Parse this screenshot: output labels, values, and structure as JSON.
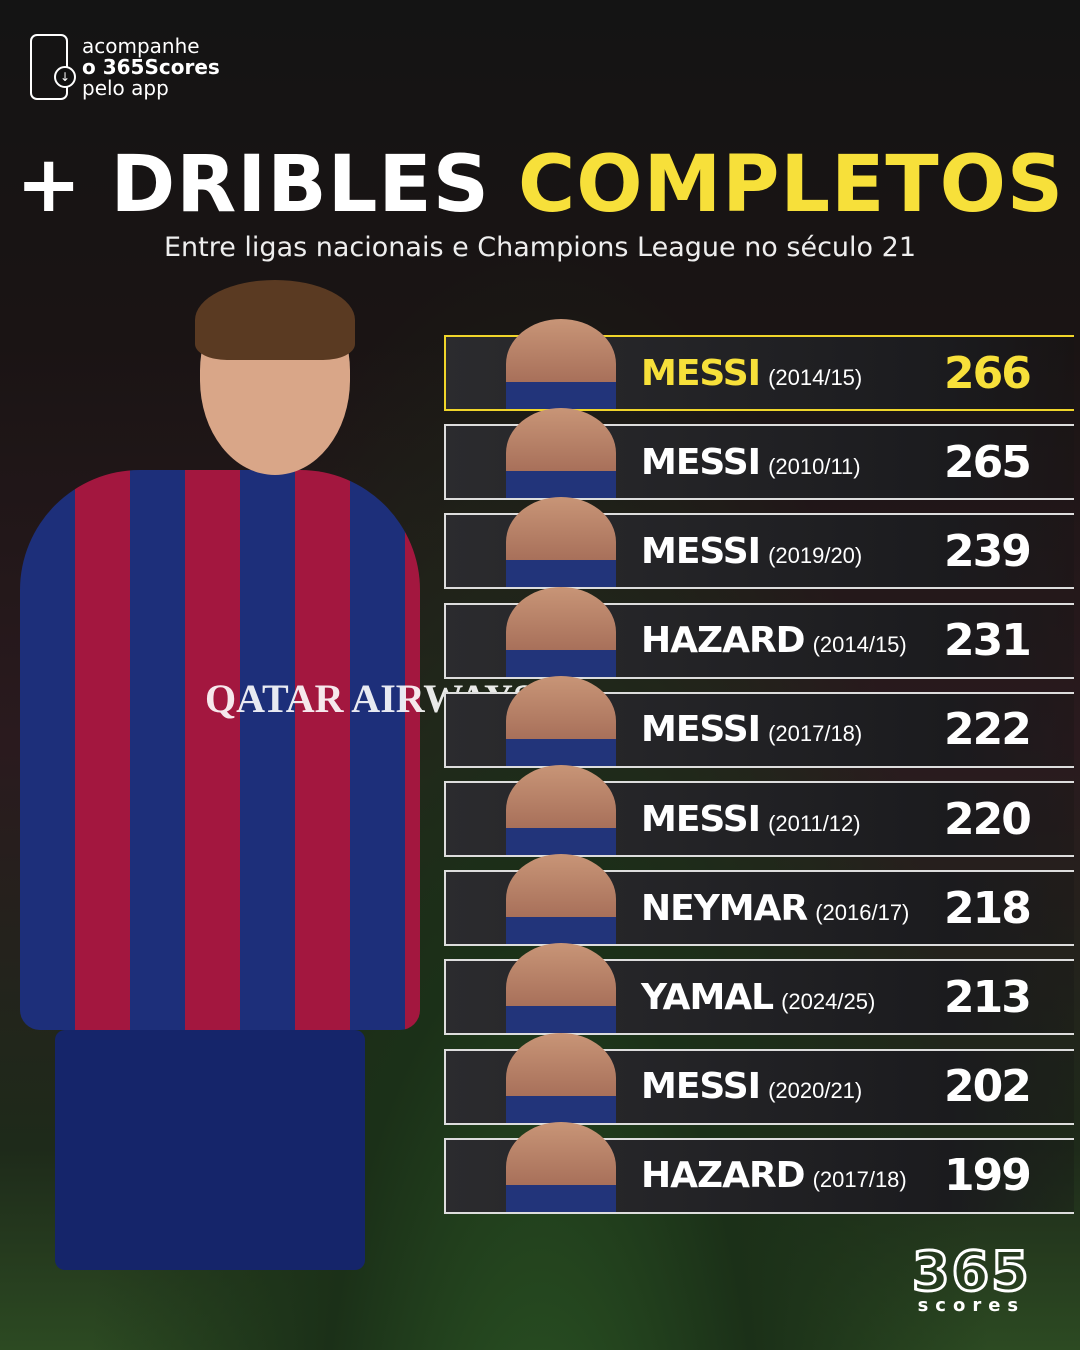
{
  "promo": {
    "line1": "acompanhe",
    "line2": "o 365Scores",
    "line3": "pelo app",
    "icon": "phone-download-icon"
  },
  "title": {
    "prefix": "+ DRIBLES",
    "highlight": "COMPLETOS"
  },
  "subtitle": "Entre ligas nacionais e Champions League no século 21",
  "background": {
    "sponsor": "QATAR AIRWAYS"
  },
  "colors": {
    "accent": "#f7e03a"
  },
  "ranking": [
    {
      "name": "MESSI",
      "season": "(2014/15)",
      "value": "266"
    },
    {
      "name": "MESSI",
      "season": "(2010/11)",
      "value": "265"
    },
    {
      "name": "MESSI",
      "season": "(2019/20)",
      "value": "239"
    },
    {
      "name": "HAZARD",
      "season": "(2014/15)",
      "value": "231"
    },
    {
      "name": "MESSI",
      "season": "(2017/18)",
      "value": "222"
    },
    {
      "name": "MESSI",
      "season": "(2011/12)",
      "value": "220"
    },
    {
      "name": "NEYMAR",
      "season": "(2016/17)",
      "value": "218"
    },
    {
      "name": "YAMAL",
      "season": "(2024/25)",
      "value": "213"
    },
    {
      "name": "MESSI",
      "season": "(2020/21)",
      "value": "202"
    },
    {
      "name": "HAZARD",
      "season": "(2017/18)",
      "value": "199"
    }
  ],
  "logo": {
    "number": "365",
    "word": "scores"
  }
}
